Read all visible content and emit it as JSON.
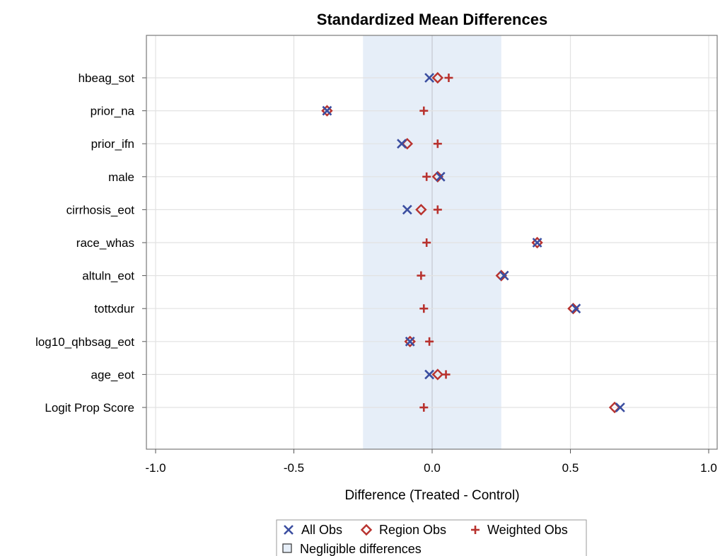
{
  "chart_data": {
    "type": "scatter",
    "title": "Standardized Mean Differences",
    "xlabel": "Difference (Treated - Control)",
    "ylabel": "",
    "xlim": [
      -1.0,
      1.0
    ],
    "xticks": [
      "-1.0",
      "-0.5",
      "0.0",
      "0.5",
      "1.0"
    ],
    "xtick_values": [
      -1.0,
      -0.5,
      0.0,
      0.5,
      1.0
    ],
    "negligible_band": [
      -0.25,
      0.25
    ],
    "band_label": "Negligible differences",
    "grid": true,
    "legend_position": "bottom",
    "categories": [
      "hbeag_sot",
      "prior_na",
      "prior_ifn",
      "male",
      "cirrhosis_eot",
      "race_whas",
      "altuln_eot",
      "tottxdur",
      "log10_qhbsag_eot",
      "age_eot",
      "Logit Prop Score"
    ],
    "series": [
      {
        "name": "All Obs",
        "marker": "x",
        "color": "#3b4ea0",
        "values": [
          -0.01,
          -0.38,
          -0.11,
          0.03,
          -0.09,
          0.38,
          0.26,
          0.52,
          -0.08,
          -0.01,
          0.68
        ]
      },
      {
        "name": "Region Obs",
        "marker": "diamond",
        "color": "#b8322e",
        "values": [
          0.02,
          -0.38,
          -0.09,
          0.02,
          -0.04,
          0.38,
          0.25,
          0.51,
          -0.08,
          0.02,
          0.66
        ]
      },
      {
        "name": "Weighted Obs",
        "marker": "plus",
        "color": "#b8322e",
        "values": [
          0.06,
          -0.03,
          0.02,
          -0.02,
          0.02,
          -0.02,
          -0.04,
          -0.03,
          -0.01,
          0.05,
          -0.03
        ]
      }
    ]
  }
}
